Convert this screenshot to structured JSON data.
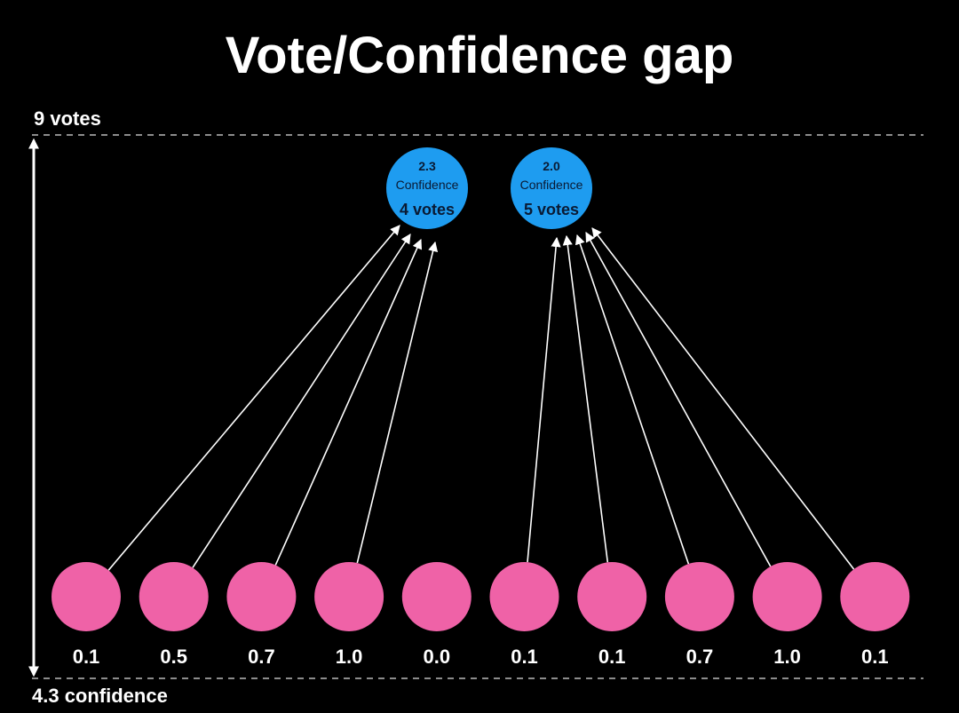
{
  "title": "Vote/Confidence gap",
  "axis": {
    "top_label": "9 votes",
    "bottom_label": "4.3 confidence"
  },
  "colors": {
    "background": "#000000",
    "voter": "#ef62a7",
    "candidate": "#1e9cf0",
    "line": "#ffffff",
    "dashed": "#8c8c8c"
  },
  "candidates": [
    {
      "confidence": "2.3",
      "confidence_label": "Confidence",
      "votes": "4 votes"
    },
    {
      "confidence": "2.0",
      "confidence_label": "Confidence",
      "votes": "5 votes"
    }
  ],
  "voters": [
    {
      "value": "0.1",
      "votes_for": 0
    },
    {
      "value": "0.5",
      "votes_for": 0
    },
    {
      "value": "0.7",
      "votes_for": 0
    },
    {
      "value": "1.0",
      "votes_for": 0
    },
    {
      "value": "0.0",
      "votes_for": null
    },
    {
      "value": "0.1",
      "votes_for": 1
    },
    {
      "value": "0.1",
      "votes_for": 1
    },
    {
      "value": "0.7",
      "votes_for": 1
    },
    {
      "value": "1.0",
      "votes_for": 1
    },
    {
      "value": "0.1",
      "votes_for": 1
    }
  ]
}
